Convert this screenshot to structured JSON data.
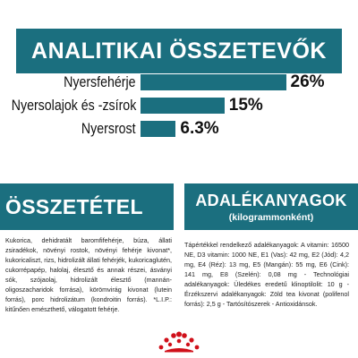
{
  "analytics": {
    "title": "ANALITIKAI ÖSSZETEVŐK",
    "rows": [
      {
        "label": "Nyersfehérje",
        "value": "26%",
        "percent": 26
      },
      {
        "label": "Nyersolajok és -zsírok",
        "value": "15%",
        "percent": 15
      },
      {
        "label": "Nyersrost",
        "value": "6.3%",
        "percent": 6.3
      }
    ]
  },
  "composition": {
    "title": "ÖSSZETÉTEL",
    "text": "Kukorica, dehidratált baromfifehérje, búza, állati zsiradékok, növényi rostok, növényi fehérje kivonat*, kukoricaliszt, rizs, hidrolizált állati fehérjék, kukoricaglutén, cukorrépapép, halolaj, élesztő és annak részei, ásványi sók, szójaolaj, hidrolizált élesztő (mannán-oligoszacharidok forrása), körömvirág kivonat (lutein forrás), porc hidrolizátum (kondroitin forrás). *L.I.P.: kitűnően emészthető, válogatott fehérje."
  },
  "additives": {
    "title": "ADALÉKANYAGOK",
    "subtitle": "(kilogrammonként)",
    "text": "Tápértékkel rendelkező adalékanyagok: A vitamin: 16500 NE, D3 vitamin: 1000 NE, E1 (Vas): 42 mg, E2 (Jód): 4,2 mg, E4 (Réz): 13 mg, E5 (Mangán): 55 mg, E6 (Cink): 141 mg, E8 (Szelén): 0,08 mg - Technológiai adalékanyagok: Üledékes eredetű klinoptilolit: 10 g - Érzékszervi adalékanyagok: Zöld tea kivonat (polifenol forrás): 2,5 g - Tartósítószerek - Antioxidánsok."
  },
  "colors": {
    "accent": "#1b6f7f",
    "logo": "#d0101a"
  },
  "logo_icon": "royal-canin-crown-logo"
}
